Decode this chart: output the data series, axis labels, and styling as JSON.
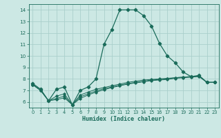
{
  "xlabel": "Humidex (Indice chaleur)",
  "bg_color": "#cce8e4",
  "grid_color": "#aacfcb",
  "line_color": "#1a6b5a",
  "xlim": [
    -0.5,
    23.5
  ],
  "ylim": [
    5.5,
    14.5
  ],
  "xticks": [
    0,
    1,
    2,
    3,
    4,
    5,
    6,
    7,
    8,
    9,
    10,
    11,
    12,
    13,
    14,
    15,
    16,
    17,
    18,
    19,
    20,
    21,
    22,
    23
  ],
  "yticks": [
    6,
    7,
    8,
    9,
    10,
    11,
    12,
    13,
    14
  ],
  "line1_x": [
    0,
    1,
    2,
    3,
    4,
    5,
    6,
    7,
    8,
    9,
    10,
    11,
    12,
    13,
    14,
    15,
    16,
    17,
    18,
    19,
    20,
    21,
    22,
    23
  ],
  "line1_y": [
    7.6,
    7.1,
    6.1,
    7.1,
    7.3,
    5.75,
    7.0,
    7.3,
    8.0,
    11.0,
    12.3,
    14.0,
    14.0,
    14.0,
    13.5,
    12.6,
    11.1,
    10.0,
    9.4,
    8.6,
    8.2,
    8.3,
    7.7,
    7.7
  ],
  "line2_x": [
    0,
    1,
    2,
    3,
    4,
    5,
    6,
    7,
    8,
    9,
    10,
    11,
    12,
    13,
    14,
    15,
    16,
    17,
    18,
    19,
    20,
    21,
    22,
    23
  ],
  "line2_y": [
    7.5,
    7.0,
    6.1,
    6.2,
    6.35,
    5.75,
    6.3,
    6.6,
    6.85,
    7.05,
    7.25,
    7.4,
    7.55,
    7.65,
    7.75,
    7.85,
    7.9,
    7.95,
    8.05,
    8.1,
    8.15,
    8.2,
    7.7,
    7.7
  ],
  "line3_x": [
    0,
    1,
    2,
    3,
    4,
    5,
    6,
    7,
    8,
    9,
    10,
    11,
    12,
    13,
    14,
    15,
    16,
    17,
    18,
    19,
    20,
    21,
    22,
    23
  ],
  "line3_y": [
    7.5,
    7.0,
    6.1,
    6.3,
    6.5,
    5.75,
    6.45,
    6.7,
    6.95,
    7.15,
    7.3,
    7.45,
    7.6,
    7.7,
    7.8,
    7.9,
    7.95,
    8.0,
    8.1,
    8.15,
    8.2,
    8.25,
    7.7,
    7.7
  ],
  "line4_x": [
    0,
    1,
    2,
    3,
    4,
    5,
    6,
    7,
    8,
    9,
    10,
    11,
    12,
    13,
    14,
    15,
    16,
    17,
    18,
    19,
    20,
    21,
    22,
    23
  ],
  "line4_y": [
    7.5,
    7.0,
    6.1,
    6.5,
    6.7,
    5.75,
    6.6,
    6.85,
    7.1,
    7.25,
    7.4,
    7.55,
    7.7,
    7.8,
    7.9,
    7.95,
    8.0,
    8.05,
    8.1,
    8.15,
    8.2,
    8.25,
    7.7,
    7.7
  ]
}
